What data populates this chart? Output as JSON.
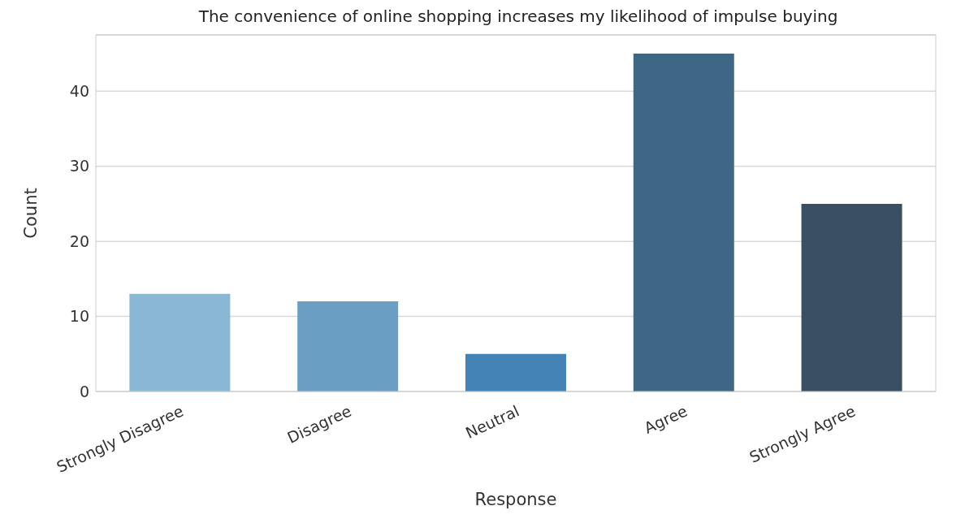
{
  "chart_data": {
    "type": "bar",
    "title": "The convenience of online shopping increases my likelihood of impulse buying",
    "xlabel": "Response",
    "ylabel": "Count",
    "categories": [
      "Strongly Disagree",
      "Disagree",
      "Neutral",
      "Agree",
      "Strongly Agree"
    ],
    "values": [
      13,
      12,
      5,
      45,
      25
    ],
    "colors": [
      "#8ab7d4",
      "#6a9ec3",
      "#4383b6",
      "#3e6786",
      "#3a4f62"
    ],
    "ylim": [
      0,
      47.5
    ],
    "yticks": [
      0,
      10,
      20,
      30,
      40
    ],
    "grid": "y",
    "legend": false
  }
}
